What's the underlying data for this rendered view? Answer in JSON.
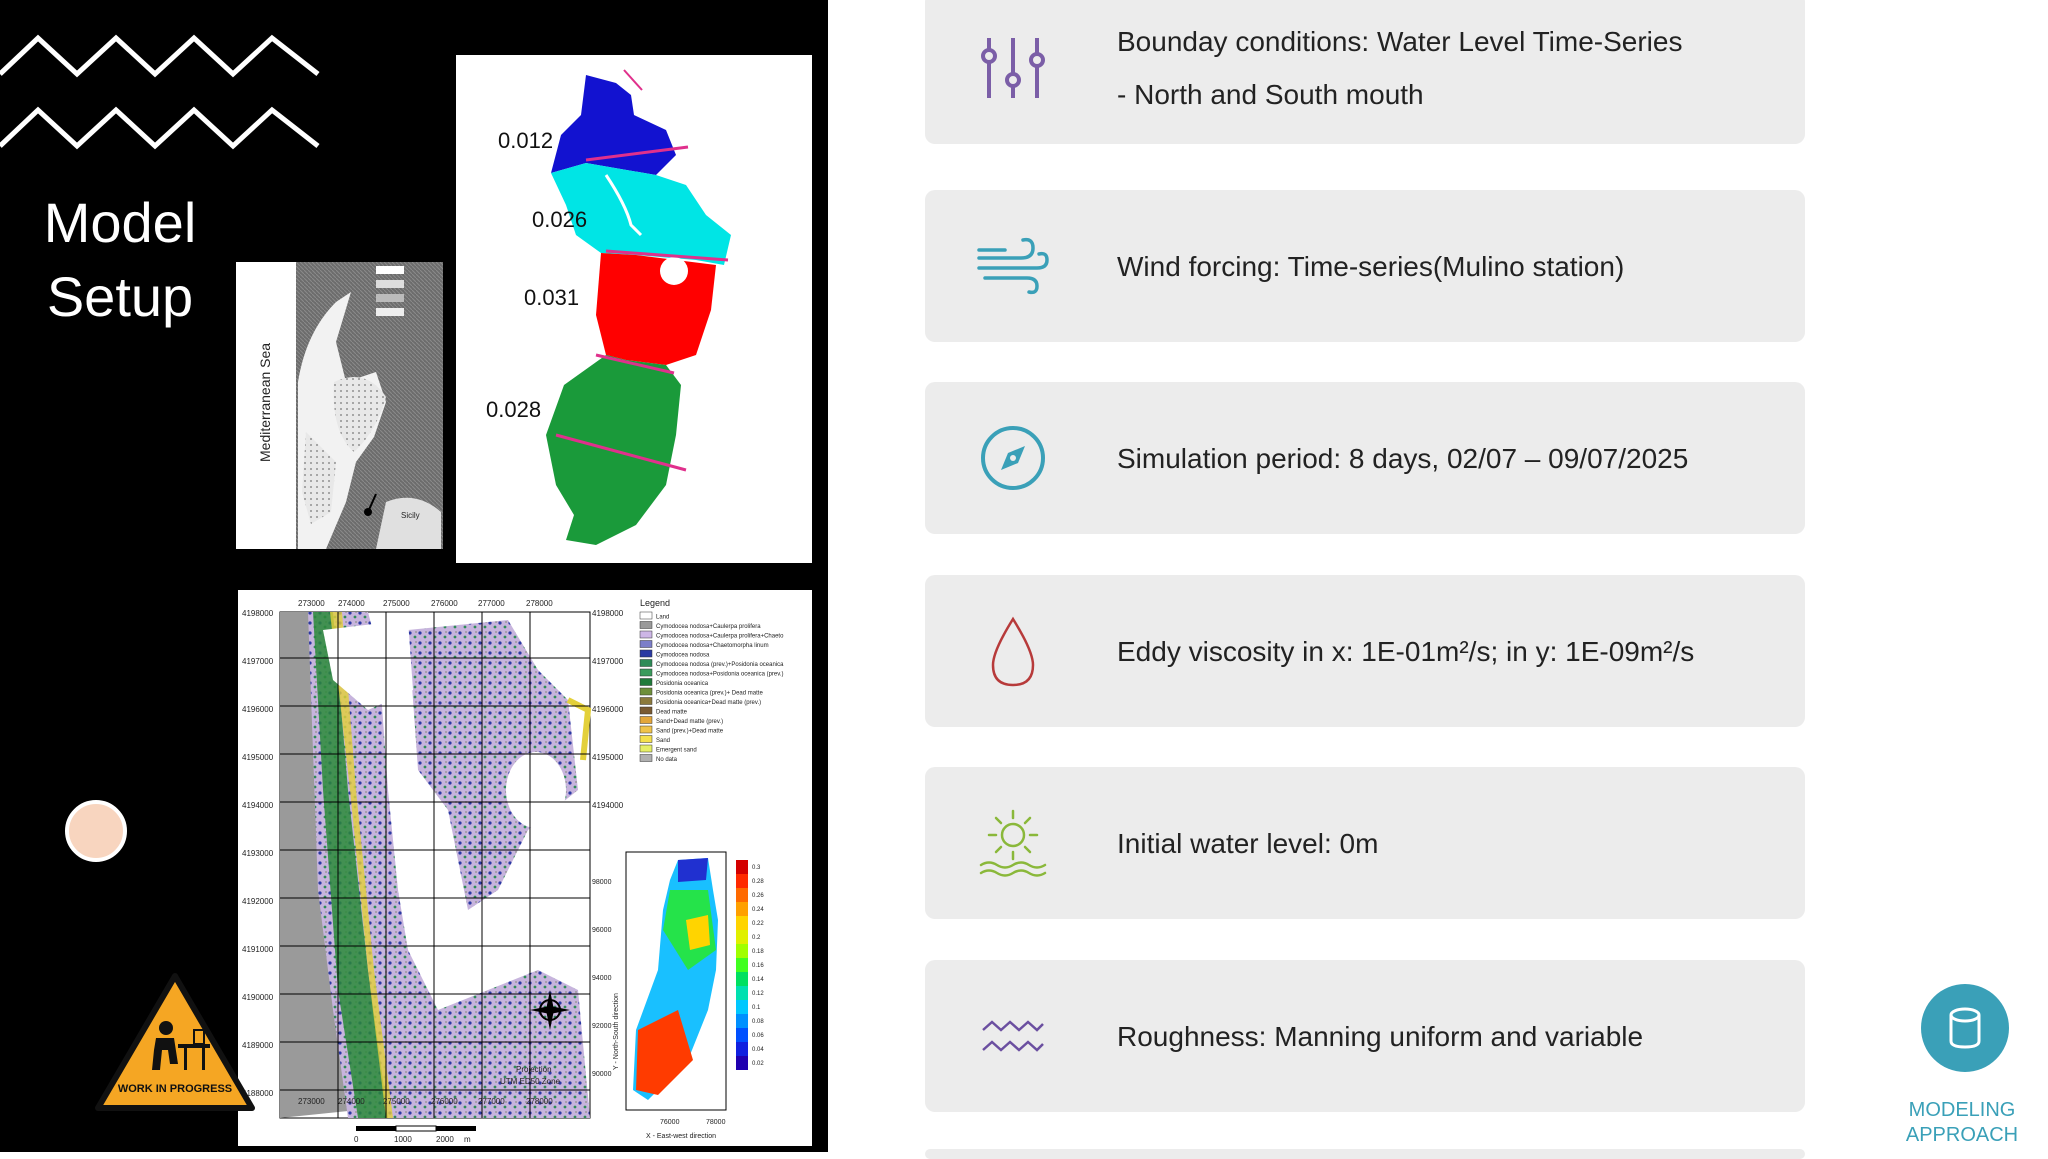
{
  "slide": {
    "title_line1": "Model",
    "title_line2": "Setup"
  },
  "maps": {
    "gray_map": {
      "sea_label": "Mediterranean Sea"
    },
    "colored_map": {
      "labels": [
        "0.012",
        "0.026",
        "0.031",
        "0.028"
      ]
    },
    "habitat_map": {
      "top_ticks": [
        "273000",
        "274000",
        "275000",
        "276000",
        "277000",
        "278000"
      ],
      "left_ticks": [
        "4198000",
        "4197000",
        "4196000",
        "4195000",
        "4194000",
        "4193000",
        "4192000",
        "4191000",
        "4190000",
        "4189000",
        "4188000"
      ],
      "legend_title": "Legend",
      "legend_items": [
        "Land",
        "Cymodocea nodosa+Caulerpa prolifera",
        "Cymodocea nodosa+Caulerpa prolifera+Chaeto",
        "Cymodocea nodosa+Chaetomorpha linum",
        "Cymodocea nodosa",
        "Cymodocea nodosa (prev.)+Posidonia oceanica",
        "Cymodocea nodosa+Posidonia oceanica (prev.)",
        "Posidonia oceanica",
        "Posidonia oceanica (prev.)+ Dead matte",
        "Posidonia oceanica+Dead matte (prev.)",
        "Dead matte",
        "Sand+Dead matte (prev.)",
        "Sand (prev.)+Dead matte",
        "Sand",
        "Emergent sand",
        "No data"
      ],
      "legend_colors": [
        "#ffffff",
        "#9a9a9a",
        "#cdb6e6",
        "#7c7ec9",
        "#2b3aa3",
        "#2e8b57",
        "#3a9b5c",
        "#1f7a3a",
        "#6e8f3a",
        "#8c7a3c",
        "#7a5a32",
        "#e3a63a",
        "#f0c34a",
        "#f4e04c",
        "#e6ef66",
        "#b0b0b0"
      ],
      "projection_line1": "Projection",
      "projection_line2": "UTM ED50 Zone",
      "scale_labels": [
        "0",
        "1000",
        "2000",
        "m"
      ],
      "inset_ylabel": "Y - North-South direction",
      "inset_xlabel": "X - East-west direction",
      "inset_yticks": [
        "98000",
        "96000",
        "94000",
        "92000",
        "90000"
      ],
      "inset_xticks": [
        "76000",
        "78000"
      ],
      "inset_colorbar_ticks": [
        "0.3",
        "0.28",
        "0.26",
        "0.24",
        "0.22",
        "0.2",
        "0.18",
        "0.16",
        "0.14",
        "0.12",
        "0.1",
        "0.08",
        "0.06",
        "0.04",
        "0.02"
      ]
    },
    "wip_text": "WORK IN PROGRESS"
  },
  "cards": [
    {
      "icon": "sliders-icon",
      "color": "#7b5ea7",
      "line1": "Bounday conditions: Water Level Time-Series",
      "line2": "- North and South mouth"
    },
    {
      "icon": "wind-icon",
      "color": "#3aa0b8",
      "line1": "Wind forcing: Time-series(Mulino station)",
      "line2": ""
    },
    {
      "icon": "compass-icon",
      "color": "#3aa0b8",
      "line1": "Simulation period: 8 days, 02/07 – 09/07/2025",
      "line2": ""
    },
    {
      "icon": "drop-icon",
      "color": "#b73a3a",
      "line1": "Eddy viscosity in x: 1E-01m²/s; in y: 1E-09m²/s",
      "line2": ""
    },
    {
      "icon": "sunrise-icon",
      "color": "#8ab83a",
      "line1": "Initial water level: 0m",
      "line2": ""
    },
    {
      "icon": "waves-icon",
      "color": "#6b4fa0",
      "line1": "Roughness: Manning uniform and variable",
      "line2": ""
    }
  ],
  "nav": {
    "icon": "database-icon",
    "line1": "MODELING",
    "line2": "APPROACH"
  }
}
